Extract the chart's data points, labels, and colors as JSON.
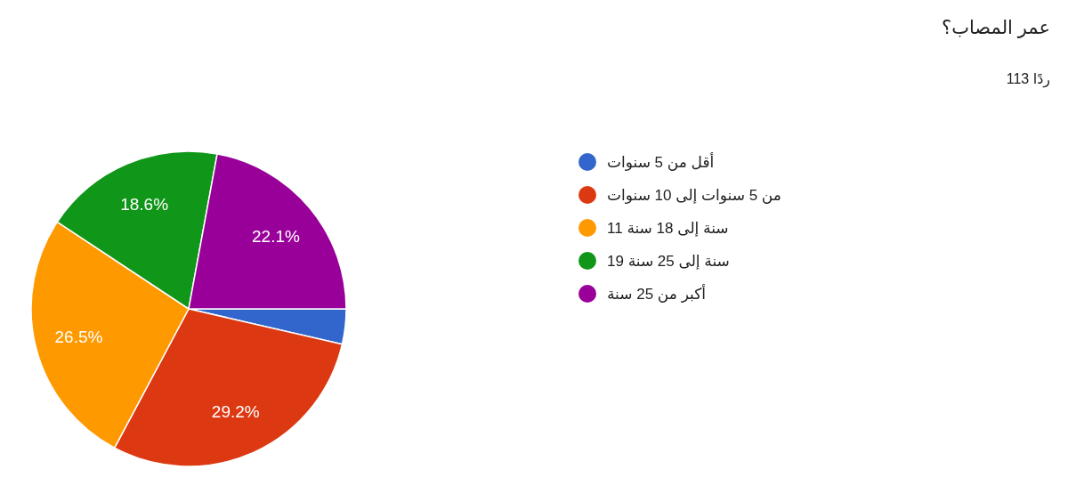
{
  "chart_data": {
    "type": "pie",
    "title": "عمر المصاب؟",
    "subtitle": "113 ردًا",
    "categories": [
      "أقل من 5 سنوات",
      "من 5 سنوات إلى 10 سنوات",
      "11 سنة إلى 18 سنة",
      "19 سنة إلى 25 سنة",
      "أكبر من 25 سنة"
    ],
    "values": [
      3.6,
      29.2,
      26.5,
      18.6,
      22.1
    ],
    "value_labels": [
      null,
      "29.2%",
      "26.5%",
      "18.6%",
      "22.1%"
    ],
    "colors": [
      "#3366cc",
      "#dc3912",
      "#ff9900",
      "#109618",
      "#990099"
    ],
    "legend": "right"
  }
}
